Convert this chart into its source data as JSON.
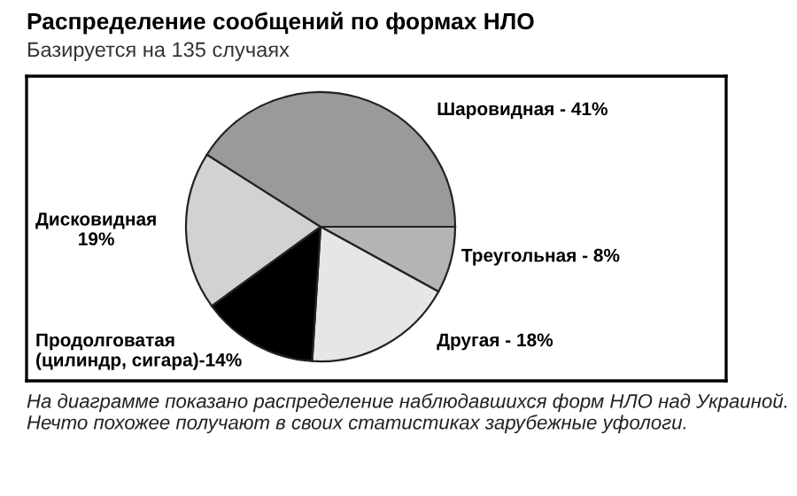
{
  "chart_data": {
    "type": "pie",
    "title": "Распределение сообщений по формах НЛО",
    "subtitle": "Базируется на 135 случаях",
    "categories": [
      "Треугольная - 8%",
      "Другая - 18%",
      "Продолговатая\n(цилиндр, сигара)-14%",
      "Дисковидная\n19%",
      "Шаровидная - 41%"
    ],
    "values": [
      8,
      18,
      14,
      19,
      41
    ],
    "colors": [
      "#b4b4b4",
      "#e6e6e6",
      "#000000",
      "#d2d2d2",
      "#9a9a9a"
    ],
    "annotations": [
      "На диаграмме показано распределение наблюдавшихся форм НЛО над Украиной. Нечто похожее получают в своих статистиках зарубежные уфологи."
    ]
  }
}
